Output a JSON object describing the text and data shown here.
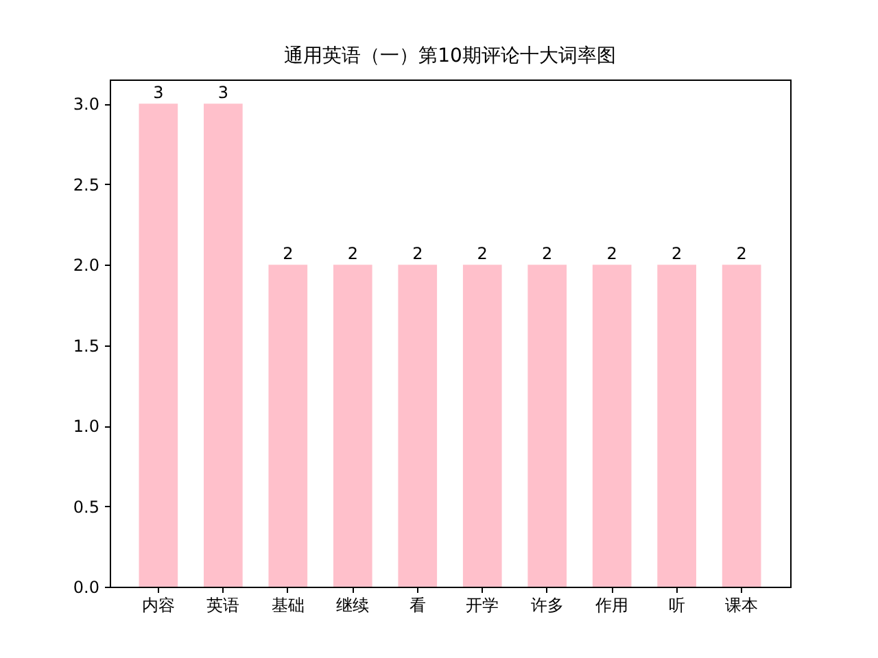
{
  "chart_data": {
    "type": "bar",
    "title": "通用英语（一）第10期评论十大词率图",
    "categories": [
      "内容",
      "英语",
      "基础",
      "继续",
      "看",
      "开学",
      "许多",
      "作用",
      "听",
      "课本"
    ],
    "values": [
      3,
      3,
      2,
      2,
      2,
      2,
      2,
      2,
      2,
      2
    ],
    "color": "#ffc0cb",
    "ylim": [
      0,
      3.15
    ],
    "yticks": [
      {
        "value": 0,
        "label": "0.0"
      },
      {
        "value": 0.5,
        "label": "0.5"
      },
      {
        "value": 1,
        "label": "1.0"
      },
      {
        "value": 1.5,
        "label": "1.5"
      },
      {
        "value": 2,
        "label": "2.0"
      },
      {
        "value": 2.5,
        "label": "2.5"
      },
      {
        "value": 3,
        "label": "3.0"
      }
    ],
    "grid": false,
    "data_labels": true
  }
}
